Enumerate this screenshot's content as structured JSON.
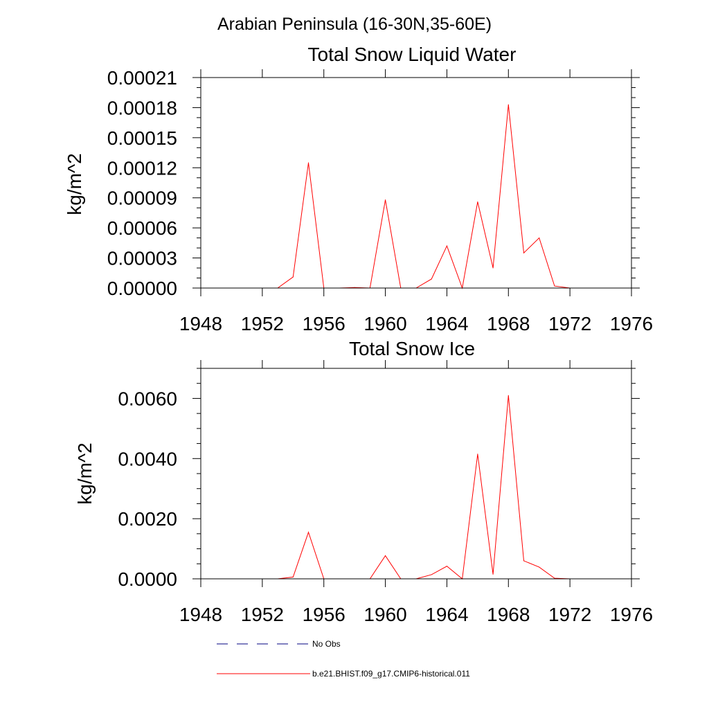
{
  "figure": {
    "title": "Arabian Peninsula (16-30N,35-60E)"
  },
  "chart_data": [
    {
      "type": "line",
      "title": "Total Snow Liquid Water",
      "xlabel": "",
      "ylabel": "kg/m^2",
      "xlim": [
        1948,
        1976
      ],
      "ylim": [
        0,
        0.00021
      ],
      "x_ticks": [
        1948,
        1952,
        1956,
        1960,
        1964,
        1968,
        1972,
        1976
      ],
      "x_tick_labels": [
        "1948",
        "1952",
        "1956",
        "1960",
        "1964",
        "1968",
        "1972",
        "1976"
      ],
      "y_ticks": [
        0,
        3e-05,
        6e-05,
        9e-05,
        0.00012,
        0.00015,
        0.00018,
        0.00021
      ],
      "y_tick_labels": [
        "0.00000",
        "0.00003",
        "0.00006",
        "0.00009",
        "0.00012",
        "0.00015",
        "0.00018",
        "0.00021"
      ],
      "y_minor_step": 1e-05,
      "series": [
        {
          "name": "b.e21.BHIST.f09_g17.CMIP6-historical.011",
          "color": "#ff0000",
          "x": [
            1950,
            1951,
            1952,
            1953,
            1954,
            1955,
            1956,
            1957,
            1958,
            1959,
            1960,
            1961,
            1962,
            1963,
            1964,
            1965,
            1966,
            1967,
            1968,
            1969,
            1970,
            1971,
            1972,
            1973,
            1974
          ],
          "y": [
            0.0,
            0.0,
            0.0,
            0.0,
            1.1e-05,
            0.000125,
            0.0,
            0.0,
            5e-07,
            0.0,
            8.8e-05,
            0.0,
            0.0,
            9e-06,
            4.2e-05,
            0.0,
            8.6e-05,
            2e-05,
            0.000183,
            3.5e-05,
            5e-05,
            2e-06,
            0.0,
            0.0,
            0.0
          ]
        }
      ]
    },
    {
      "type": "line",
      "title": "Total Snow Ice",
      "xlabel": "",
      "ylabel": "kg/m^2",
      "xlim": [
        1948,
        1976
      ],
      "ylim": [
        0,
        0.007
      ],
      "x_ticks": [
        1948,
        1952,
        1956,
        1960,
        1964,
        1968,
        1972,
        1976
      ],
      "x_tick_labels": [
        "1948",
        "1952",
        "1956",
        "1960",
        "1964",
        "1968",
        "1972",
        "1976"
      ],
      "y_ticks": [
        0,
        0.002,
        0.004,
        0.006
      ],
      "y_tick_labels": [
        "0.0000",
        "0.0020",
        "0.0040",
        "0.0060"
      ],
      "y_minor_step": 0.0005,
      "series": [
        {
          "name": "b.e21.BHIST.f09_g17.CMIP6-historical.011",
          "color": "#ff0000",
          "x": [
            1950,
            1951,
            1952,
            1953,
            1954,
            1955,
            1956,
            1957,
            1958,
            1959,
            1960,
            1961,
            1962,
            1963,
            1964,
            1965,
            1966,
            1967,
            1968,
            1969,
            1970,
            1971,
            1972,
            1973,
            1974
          ],
          "y": [
            0.0,
            0.0,
            0.0,
            0.0,
            6e-05,
            0.00155,
            0.0,
            0.0,
            0.0,
            0.0,
            0.00077,
            0.0,
            0.0,
            0.00014,
            0.00042,
            0.0,
            0.00415,
            0.00015,
            0.0061,
            0.0006,
            0.00039,
            2e-05,
            0.0,
            0.0,
            0.0
          ]
        }
      ]
    }
  ],
  "legend": {
    "items": [
      {
        "label": "No Obs",
        "color": "#000080",
        "dash": "dashed"
      },
      {
        "label": "b.e21.BHIST.f09_g17.CMIP6-historical.011",
        "color": "#ff0000",
        "dash": "solid"
      }
    ]
  }
}
